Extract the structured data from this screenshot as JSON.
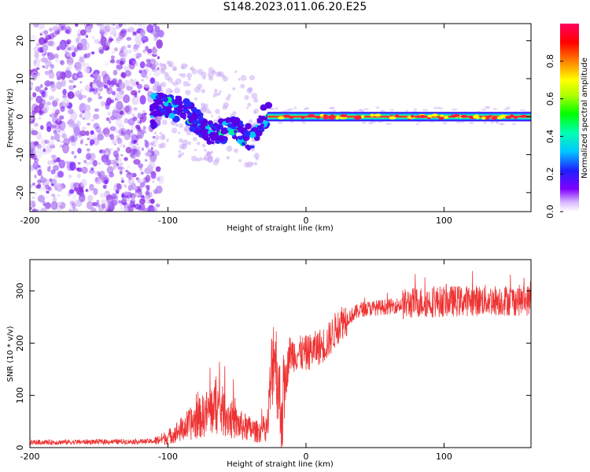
{
  "title": "S148.2023.011.06.20.E25",
  "chart_data": [
    {
      "type": "heatmap",
      "name": "spectrogram",
      "xlabel": "Height of straight line (km)",
      "ylabel": "Frequency (Hz)",
      "xlim": [
        -200,
        163
      ],
      "ylim": [
        -25,
        24.5
      ],
      "xticks": [
        "-200",
        "-100",
        "0",
        "100"
      ],
      "xtick_values": [
        -200,
        -100,
        0,
        100
      ],
      "yticks": [
        "-20",
        "-10",
        "0",
        "10",
        "20"
      ],
      "ytick_values": [
        -20,
        -10,
        0,
        10,
        20
      ],
      "colorbar": {
        "label": "Normalized spectral amplitude",
        "range": [
          0,
          1
        ],
        "ticks": [
          "0.0",
          "0.2",
          "0.4",
          "0.6",
          "0.8"
        ],
        "tick_values": [
          0.0,
          0.2,
          0.4,
          0.6,
          0.8
        ]
      },
      "trace": {
        "description_points": [
          {
            "x": -110,
            "y": 3
          },
          {
            "x": -90,
            "y": 2
          },
          {
            "x": -70,
            "y": -4
          },
          {
            "x": -50,
            "y": -3
          },
          {
            "x": -40,
            "y": -6
          },
          {
            "x": -30,
            "y": 0
          },
          {
            "x": 0,
            "y": 1
          },
          {
            "x": 50,
            "y": 0
          },
          {
            "x": 163,
            "y": 0
          }
        ]
      }
    },
    {
      "type": "line",
      "name": "snr",
      "xlabel": "Height of straight line (km)",
      "ylabel": "SNR (10 * v/v)",
      "xlim": [
        -200,
        163
      ],
      "ylim": [
        0,
        360
      ],
      "xticks": [
        "-200",
        "-100",
        "0",
        "100"
      ],
      "xtick_values": [
        -200,
        -100,
        0,
        100
      ],
      "yticks": [
        "0",
        "100",
        "200",
        "300"
      ],
      "ytick_values": [
        0,
        100,
        200,
        300
      ],
      "color": "#ee3333",
      "envelope": [
        {
          "x": -200,
          "y": 10
        },
        {
          "x": -110,
          "y": 12
        },
        {
          "x": -100,
          "y": 20
        },
        {
          "x": -90,
          "y": 35
        },
        {
          "x": -75,
          "y": 60
        },
        {
          "x": -65,
          "y": 80
        },
        {
          "x": -50,
          "y": 45
        },
        {
          "x": -35,
          "y": 30
        },
        {
          "x": -28,
          "y": 40
        },
        {
          "x": -23,
          "y": 200
        },
        {
          "x": -18,
          "y": 60
        },
        {
          "x": -12,
          "y": 180
        },
        {
          "x": 0,
          "y": 180
        },
        {
          "x": 15,
          "y": 200
        },
        {
          "x": 25,
          "y": 240
        },
        {
          "x": 40,
          "y": 265
        },
        {
          "x": 60,
          "y": 270
        },
        {
          "x": 80,
          "y": 278
        },
        {
          "x": 100,
          "y": 280
        },
        {
          "x": 130,
          "y": 282
        },
        {
          "x": 163,
          "y": 282
        }
      ]
    }
  ]
}
